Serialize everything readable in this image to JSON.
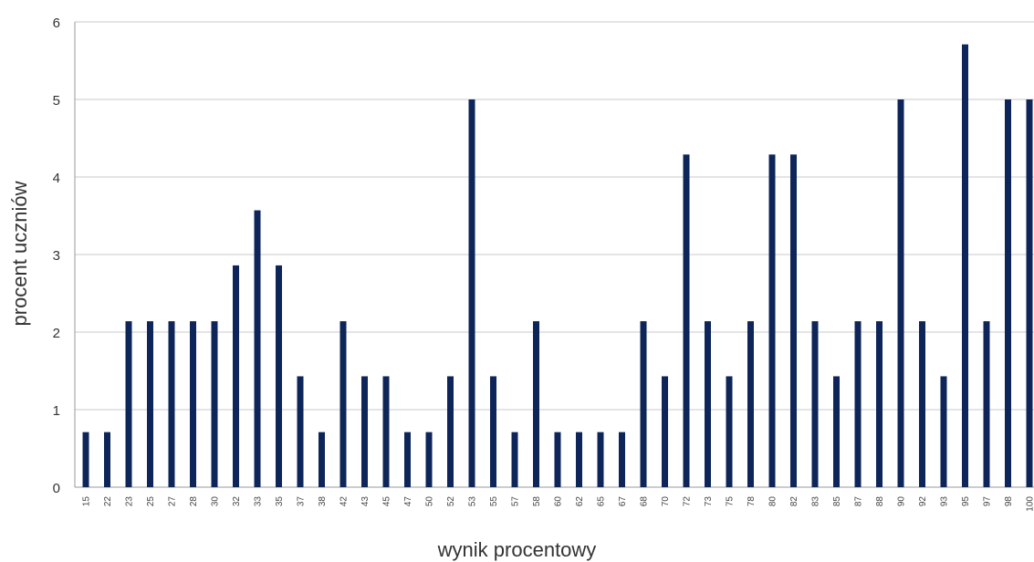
{
  "chart_data": {
    "type": "bar",
    "title": "",
    "xlabel": "wynik procentowy",
    "ylabel": "procent uczniów",
    "ylim": [
      0,
      6
    ],
    "yticks": [
      0,
      1,
      2,
      3,
      4,
      5,
      6
    ],
    "grid": true,
    "bar_color": "#0d2559",
    "categories": [
      "15",
      "22",
      "23",
      "25",
      "27",
      "28",
      "30",
      "32",
      "33",
      "35",
      "37",
      "38",
      "42",
      "43",
      "45",
      "47",
      "50",
      "52",
      "53",
      "55",
      "57",
      "58",
      "60",
      "62",
      "65",
      "67",
      "68",
      "70",
      "72",
      "73",
      "75",
      "78",
      "80",
      "82",
      "83",
      "85",
      "87",
      "88",
      "90",
      "92",
      "93",
      "95",
      "97",
      "98",
      "100"
    ],
    "values": [
      0.71,
      0.71,
      2.14,
      2.14,
      2.14,
      2.14,
      2.14,
      2.86,
      3.57,
      2.86,
      1.43,
      0.71,
      2.14,
      1.43,
      1.43,
      0.71,
      0.71,
      1.43,
      5.0,
      1.43,
      0.71,
      2.14,
      0.71,
      0.71,
      0.71,
      0.71,
      2.14,
      1.43,
      4.29,
      2.14,
      1.43,
      2.14,
      4.29,
      4.29,
      2.14,
      1.43,
      2.14,
      2.14,
      5.0,
      2.14,
      1.43,
      5.71,
      2.14,
      5.0,
      5.0
    ]
  }
}
